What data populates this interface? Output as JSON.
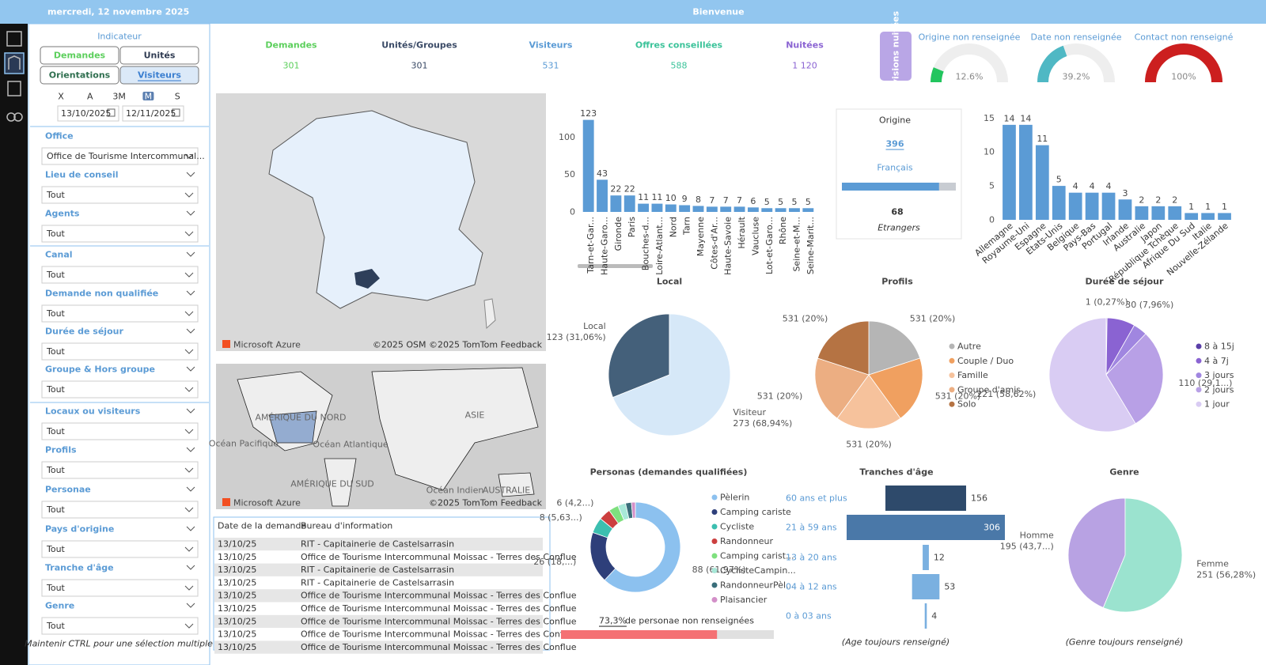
{
  "header": {
    "date": "mercredi, 12 novembre 2025",
    "title": "Bienvenue"
  },
  "indicator": {
    "title": "Indicateur",
    "buttons": [
      "Demandes",
      "Unités",
      "Orientations",
      "Visiteurs"
    ],
    "colors": [
      "#5ccf5c",
      "#2f3b52",
      "#2f6f4f",
      "#3b7fd0"
    ],
    "selected": 3
  },
  "period": {
    "buttons": [
      "X",
      "A",
      "3M",
      "M",
      "S"
    ],
    "selected": 3,
    "start": "13/10/2025",
    "end": "12/11/2025"
  },
  "filters": [
    {
      "label": "Office",
      "value": "Office de Tourisme Intercommunal..."
    },
    {
      "label": "Lieu de conseil",
      "value": "Tout"
    },
    {
      "label": "Agents",
      "value": "Tout"
    },
    {
      "label": "Canal",
      "value": "Tout"
    },
    {
      "label": "Demande non qualifiée",
      "value": "Tout"
    },
    {
      "label": "Durée de séjour",
      "value": "Tout"
    },
    {
      "label": "Groupe & Hors groupe",
      "value": "Tout"
    },
    {
      "label": "Locaux ou visiteurs",
      "value": "Tout"
    },
    {
      "label": "Profils",
      "value": "Tout"
    },
    {
      "label": "Personae",
      "value": "Tout"
    },
    {
      "label": "Pays d'origine",
      "value": "Tout"
    },
    {
      "label": "Tranche d'âge",
      "value": "Tout"
    },
    {
      "label": "Genre",
      "value": "Tout"
    }
  ],
  "footer_note": "Maintenir CTRL pour une sélection multiple",
  "kpis": [
    {
      "label": "Demandes",
      "value": 301,
      "color": "#5ccf5c"
    },
    {
      "label": "Unités/Groupes",
      "value": 301,
      "color": "#3a4a66"
    },
    {
      "label": "Visiteurs",
      "value": 531,
      "color": "#5b9bd5"
    },
    {
      "label": "Offres conseillées",
      "value": 588,
      "color": "#3cc39a"
    },
    {
      "label": "Nuitées",
      "value": {
        "value": 1120,
        "label": "1 120"
      },
      "color": "#8a63d2"
    }
  ],
  "forecast_button": "Prévisions nuitées",
  "gauges": [
    {
      "title": "Origine non renseignée",
      "value": 12.6,
      "label": "12.6%",
      "color": "#22c55e"
    },
    {
      "title": "Date non renseignée",
      "value": 39.2,
      "label": "39.2%",
      "color": "#4fb8c4"
    },
    {
      "title": "Contact non renseigné",
      "value": 100,
      "label": "100%",
      "color": "#cc1f1f"
    }
  ],
  "maps": [
    {
      "attribution": "Microsoft Azure",
      "credits": "©2025 OSM ©2025 TomTom Feedback",
      "labels": []
    },
    {
      "attribution": "Microsoft Azure",
      "credits": "©2025 TomTom Feedback",
      "labels": [
        "AMÉRIQUE DU NORD",
        "Océan Pacifique",
        "Océan Atlantique",
        "ASIE",
        "AMÉRIQUE DU SUD",
        "Océan Indien",
        "AUSTRALIE"
      ]
    }
  ],
  "table": {
    "columns": [
      "Date de la demande",
      "Bureau d'information"
    ],
    "rows": [
      [
        "13/10/25",
        "RIT - Capitainerie de Castelsarrasin"
      ],
      [
        "13/10/25",
        "Office de Tourisme Intercommunal Moissac - Terres des Conflue"
      ],
      [
        "13/10/25",
        "RIT - Capitainerie de Castelsarrasin"
      ],
      [
        "13/10/25",
        "RIT - Capitainerie de Castelsarrasin"
      ],
      [
        "13/10/25",
        "Office de Tourisme Intercommunal Moissac - Terres des Conflue"
      ],
      [
        "13/10/25",
        "Office de Tourisme Intercommunal Moissac - Terres des Conflue"
      ],
      [
        "13/10/25",
        "Office de Tourisme Intercommunal Moissac - Terres des Conflue"
      ],
      [
        "13/10/25",
        "Office de Tourisme Intercommunal Moissac - Terres des Conflue"
      ],
      [
        "13/10/25",
        "Office de Tourisme Intercommunal Moissac - Terres des Conflue"
      ]
    ]
  },
  "origin_card": {
    "title": "Origine",
    "french_count": 396,
    "french_label": "Français",
    "foreign_count": 68,
    "foreign_label": "Etrangers"
  },
  "persona_missing": {
    "value": 73.3,
    "label": "73,3%",
    "text": "de personae non renseignées"
  },
  "chart_data": [
    {
      "type": "bar",
      "categories": [
        "Tarn-et-Gar...",
        "Haute-Garo...",
        "Gironde",
        "Paris",
        "Bouches-d...",
        "Loire-Atlant...",
        "Nord",
        "Tarn",
        "Mayenne",
        "Côtes-d'Ar...",
        "Haute-Savoie",
        "Hérault",
        "Vaucluse",
        "Lot-et-Garo...",
        "Rhône",
        "Seine-et-M...",
        "Seine-Marit..."
      ],
      "values": [
        123,
        43,
        22,
        22,
        11,
        11,
        10,
        9,
        8,
        7,
        7,
        7,
        6,
        5,
        5,
        5,
        5
      ],
      "color": "#5b9bd5",
      "ylim": [
        0,
        130
      ],
      "yticks": [
        0,
        50,
        100
      ]
    },
    {
      "type": "bar",
      "categories": [
        "Allemagne",
        "Royaume-Uni",
        "Espagne",
        "Etats-Unis",
        "Belgique",
        "Pays-Bas",
        "Portugal",
        "Irlande",
        "Australie",
        "Japon",
        "République Tchèque",
        "Afrique Du Sud",
        "Italie",
        "Nouvelle-Zélande"
      ],
      "values": [
        14,
        14,
        11,
        5,
        4,
        4,
        4,
        3,
        2,
        2,
        2,
        1,
        1,
        1
      ],
      "color": "#5b9bd5",
      "ylim": [
        0,
        15.5
      ],
      "yticks": [
        0,
        5,
        10,
        15
      ]
    },
    {
      "type": "pie",
      "title": "Local",
      "categories": [
        "Local",
        "Visiteur"
      ],
      "values": [
        123,
        273
      ],
      "value_labels": [
        "123 (31,06%)",
        "273 (68,94%)"
      ],
      "colors": [
        "#44607a",
        "#d6e8f8"
      ],
      "legend": false
    },
    {
      "type": "pie",
      "title": "Profils",
      "categories": [
        "Autre",
        "Couple / Duo",
        "Famille",
        "Groupe d'amis",
        "Solo"
      ],
      "values": [
        531,
        531,
        531,
        531,
        531
      ],
      "value_labels": [
        "531 (20%)",
        "531 (20%)",
        "531 (20%)",
        "531 (20%)",
        "531 (20%)"
      ],
      "colors": [
        "#b5b5b5",
        "#f0a060",
        "#f6c29c",
        "#ecae82",
        "#b57343"
      ],
      "legend": true
    },
    {
      "type": "pie",
      "title": "Durée de séjour",
      "categories": [
        "8 à 15j",
        "4 à 7j",
        "3 jours",
        "2 jours",
        "1 jour"
      ],
      "values": [
        1,
        30,
        15,
        110,
        221
      ],
      "value_labels": [
        "1 (0,27%)",
        "30 (7,96%)",
        null,
        "110 (29,1...)",
        "221 (58,62%)"
      ],
      "colors": [
        "#5a3fa8",
        "#8a63d2",
        "#a086e0",
        "#b8a0e6",
        "#d9ccf3"
      ],
      "legend": true
    },
    {
      "type": "donut",
      "title": "Personas (demandes qualifiées)",
      "categories": [
        "Pèlerin",
        "Camping cariste",
        "Cycliste",
        "Randonneur",
        "Camping carist...",
        "CyclisteCampin...",
        "RandonneurPèl...",
        "Plaisancier"
      ],
      "values": [
        88,
        26,
        8,
        6,
        5,
        4,
        3,
        2
      ],
      "value_labels": [
        "88 (61,97%)",
        "26 (18,...)",
        "8 (5,63...)",
        "6 (4,2...)",
        null,
        null,
        null,
        null
      ],
      "colors": [
        "#8cc1ef",
        "#2e3f7a",
        "#3cbfb0",
        "#cc3f3f",
        "#7ee07e",
        "#a8e8d8",
        "#3a6e7a",
        "#d38fc8"
      ],
      "legend": true
    },
    {
      "type": "funnel",
      "title": "Tranches d'âge",
      "categories": [
        "60 ans et plus",
        "21 à 59 ans",
        "13 à 20 ans",
        "04 à 12 ans",
        "0 à 03 ans"
      ],
      "values": [
        156,
        306,
        12,
        53,
        4
      ],
      "colors": [
        "#2e4a6b",
        "#4a78a8",
        "#7ab0e0",
        "#7ab0e0",
        "#7ab0e0"
      ],
      "note": "(Age toujours renseigné)"
    },
    {
      "type": "pie",
      "title": "Genre",
      "categories": [
        "Homme",
        "Femme"
      ],
      "values": [
        195,
        251
      ],
      "value_labels": [
        "195 (43,7...)",
        "251 (56,28%)"
      ],
      "colors": [
        "#b8a2e3",
        "#9be3cf"
      ],
      "legend": false,
      "note": "(Genre toujours renseigné)"
    }
  ]
}
